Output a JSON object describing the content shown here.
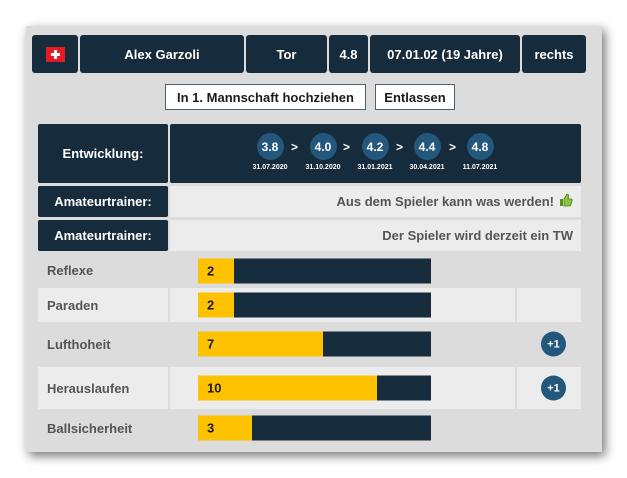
{
  "player": {
    "flag_icon": "swiss-flag-icon",
    "name": "Alex Garzoli",
    "position": "Tor",
    "strength": "4.8",
    "birth": "07.01.02 (19 Jahre)",
    "foot": "rechts"
  },
  "actions": {
    "promote_label": "In 1. Mannschaft hochziehen",
    "release_label": "Entlassen"
  },
  "development": {
    "label": "Entwicklung:",
    "separator": ">",
    "steps": [
      {
        "value": "3.8",
        "date": "31.07.2020"
      },
      {
        "value": "4.0",
        "date": "31.10.2020"
      },
      {
        "value": "4.2",
        "date": "31.01.2021"
      },
      {
        "value": "4.4",
        "date": "30.04.2021"
      },
      {
        "value": "4.8",
        "date": "11.07.2021"
      }
    ]
  },
  "coach": [
    {
      "label": "Amateurtrainer:",
      "text": "Aus dem Spieler kann was werden!",
      "icon": "thumbs-up-icon"
    },
    {
      "label": "Amateurtrainer:",
      "text": "Der Spieler wird derzeit ein TW"
    }
  ],
  "skills": {
    "max_value": 13,
    "bar_color": "#ffc200",
    "bar_bg_color": "#162b3b",
    "items": [
      {
        "name": "Reflexe",
        "value": "2",
        "increase": null
      },
      {
        "name": "Paraden",
        "value": "2",
        "increase": null
      },
      {
        "name": "Lufthoheit",
        "value": "7",
        "increase": "+1"
      },
      {
        "name": "Herauslaufen",
        "value": "10",
        "increase": "+1"
      },
      {
        "name": "Ballsicherheit",
        "value": "3",
        "increase": null
      }
    ]
  },
  "colors": {
    "dark_navy": "#162b3b",
    "accent_blue": "#23577c",
    "bar_yellow": "#ffc200",
    "card_grey": "#dcdcdc"
  }
}
